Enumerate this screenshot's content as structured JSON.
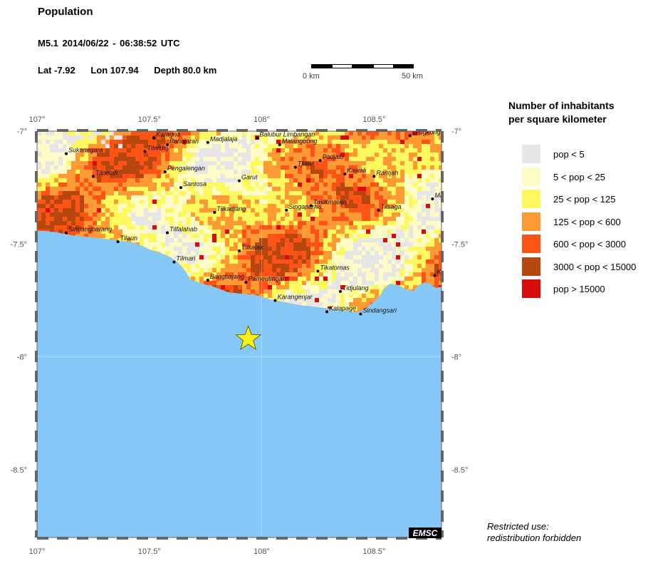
{
  "header": {
    "title": "Population",
    "magnitude": "M5.1",
    "datetime": "2014/06/22 - 06:38:52 UTC",
    "lat": "Lat -7.92",
    "lon": "Lon 107.94",
    "depth": "Depth  80.0 km"
  },
  "scale": {
    "start_label": "0 km",
    "end_label": "50 km"
  },
  "map": {
    "lon_ticks": [
      "107°",
      "107.5°",
      "108°",
      "108.5°"
    ],
    "lat_ticks": [
      "-7°",
      "-7.5°",
      "-8°",
      "-8.5°"
    ],
    "credit": "EMSC",
    "ocean_color": "#86c8f8",
    "epicenter": {
      "lat": -7.92,
      "lon": 107.94,
      "symbol": "star",
      "color": "#f4f11c"
    },
    "places": [
      {
        "name": "Sukanegara",
        "lon": 107.13,
        "lat": -7.1
      },
      {
        "name": "Tilpelah",
        "lon": 107.25,
        "lat": -7.2
      },
      {
        "name": "Tilwidej",
        "lon": 107.48,
        "lat": -7.09
      },
      {
        "name": "Karagna",
        "lon": 107.52,
        "lat": -7.03
      },
      {
        "name": "Bandjaran",
        "lon": 107.58,
        "lat": -7.06
      },
      {
        "name": "Madjalaja",
        "lon": 107.76,
        "lat": -7.05
      },
      {
        "name": "Balubur Limbangan",
        "lon": 107.98,
        "lat": -7.03
      },
      {
        "name": "Malangbong",
        "lon": 108.08,
        "lat": -7.06
      },
      {
        "name": "Padjaiu",
        "lon": 108.26,
        "lat": -7.13
      },
      {
        "name": "Tjiawi",
        "lon": 108.15,
        "lat": -7.16
      },
      {
        "name": "Kawali",
        "lon": 108.37,
        "lat": -7.19
      },
      {
        "name": "Rantjah",
        "lon": 108.5,
        "lat": -7.2
      },
      {
        "name": "Pengalengan",
        "lon": 107.57,
        "lat": -7.18
      },
      {
        "name": "Santosa",
        "lon": 107.64,
        "lat": -7.25
      },
      {
        "name": "Garut",
        "lon": 107.9,
        "lat": -7.22
      },
      {
        "name": "Tasikmalaja",
        "lon": 108.22,
        "lat": -7.33
      },
      {
        "name": "Singaparna",
        "lon": 108.11,
        "lat": -7.35
      },
      {
        "name": "Tilkadjang",
        "lon": 107.79,
        "lat": -7.36
      },
      {
        "name": "Tilsaga",
        "lon": 108.52,
        "lat": -7.35
      },
      {
        "name": "Sindangbarang",
        "lon": 107.13,
        "lat": -7.45
      },
      {
        "name": "Tilaun",
        "lon": 107.36,
        "lat": -7.49
      },
      {
        "name": "Tilfalahab",
        "lon": 107.58,
        "lat": -7.45
      },
      {
        "name": "Tilkalak",
        "lon": 107.9,
        "lat": -7.53
      },
      {
        "name": "Tilmari",
        "lon": 107.61,
        "lat": -7.58
      },
      {
        "name": "Tikatomas",
        "lon": 108.25,
        "lat": -7.62
      },
      {
        "name": "Bangbajang",
        "lon": 107.76,
        "lat": -7.66
      },
      {
        "name": "Pameutingan",
        "lon": 107.93,
        "lat": -7.67
      },
      {
        "name": "Tidjulang",
        "lon": 108.35,
        "lat": -7.71
      },
      {
        "name": "Karangenjar",
        "lon": 108.06,
        "lat": -7.75
      },
      {
        "name": "Kalapage",
        "lon": 108.29,
        "lat": -7.8
      },
      {
        "name": "Sindangsari",
        "lon": 108.44,
        "lat": -7.81
      },
      {
        "name": "Lengkong",
        "lon": 108.66,
        "lat": -7.02
      },
      {
        "name": "Ma",
        "lon": 108.76,
        "lat": -7.3
      },
      {
        "name": "Kal",
        "lon": 108.77,
        "lat": -7.64
      }
    ]
  },
  "legend": {
    "title": "Number of inhabitants\nper square kilometer",
    "items": [
      {
        "label": "pop < 5",
        "color": "#e6e6e6"
      },
      {
        "label": "5 < pop < 25",
        "color": "#fefbc7"
      },
      {
        "label": "25 < pop < 125",
        "color": "#fdf85e"
      },
      {
        "label": "125 < pop < 600",
        "color": "#fd9a33"
      },
      {
        "label": "600 < pop < 3000",
        "color": "#fd5316"
      },
      {
        "label": "3000 < pop < 15000",
        "color": "#b5470f"
      },
      {
        "label": "pop > 15000",
        "color": "#d90b0b"
      }
    ]
  },
  "footer": {
    "restricted_line1": "Restricted use:",
    "restricted_line2": "redistribution forbidden"
  }
}
